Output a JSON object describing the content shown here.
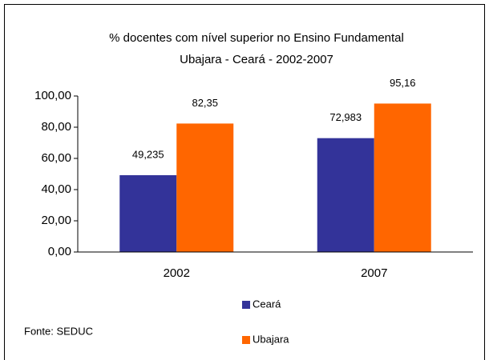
{
  "chart_data": {
    "type": "bar",
    "title": "% docentes com nível superior no  Ensino Fundamental",
    "subtitle": "Ubajara -  Ceará - 2002-2007",
    "source": "Fonte: SEDUC",
    "categories": [
      "2002",
      "2007"
    ],
    "series": [
      {
        "name": "Ceará",
        "color": "#333399",
        "values": [
          49.235,
          72.983
        ],
        "value_labels": [
          "49,235",
          "72,983"
        ]
      },
      {
        "name": "Ubajara",
        "color": "#ff6600",
        "values": [
          82.35,
          95.16
        ],
        "value_labels": [
          "82,35",
          "95,16"
        ]
      }
    ],
    "ylim": [
      0,
      100
    ],
    "yticks": [
      {
        "value": 0,
        "label": "0,00"
      },
      {
        "value": 20,
        "label": "20,00"
      },
      {
        "value": 40,
        "label": "40,00"
      },
      {
        "value": 60,
        "label": "60,00"
      },
      {
        "value": 80,
        "label": "80,00"
      },
      {
        "value": 100,
        "label": "100,00"
      }
    ],
    "grid": false
  }
}
